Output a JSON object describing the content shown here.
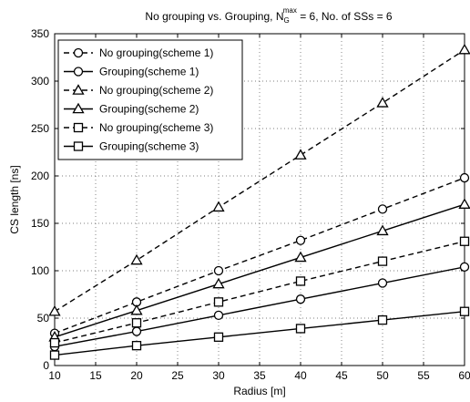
{
  "chart_data": {
    "type": "line",
    "title_prefix": "No grouping vs. Grouping, N",
    "title_sub": "G",
    "title_sup": "max",
    "title_suffix": " = 6, No. of SSs = 6",
    "xlabel": "Radius [m]",
    "ylabel": "CS length [ns]",
    "xlim": [
      10,
      60
    ],
    "ylim": [
      0,
      350
    ],
    "xticks": [
      "10",
      "15",
      "20",
      "25",
      "30",
      "35",
      "40",
      "45",
      "50",
      "55",
      "60"
    ],
    "yticks": [
      "0",
      "50",
      "100",
      "150",
      "200",
      "250",
      "300",
      "350"
    ],
    "grid": true,
    "legend_position": "top-left",
    "x": [
      10,
      20,
      30,
      40,
      50,
      60
    ],
    "series": [
      {
        "name": "No grouping(scheme 1)",
        "marker": "circle",
        "dash": "dashed",
        "values": [
          34,
          67,
          100,
          132,
          165,
          198
        ]
      },
      {
        "name": "Grouping(scheme 1)",
        "marker": "circle",
        "dash": "solid",
        "values": [
          20,
          36,
          53,
          70,
          87,
          104
        ]
      },
      {
        "name": "No grouping(scheme 2)",
        "marker": "triangle",
        "dash": "dashed",
        "values": [
          57,
          111,
          167,
          222,
          277,
          333
        ]
      },
      {
        "name": "Grouping(scheme 2)",
        "marker": "triangle",
        "dash": "solid",
        "values": [
          30,
          58,
          86,
          114,
          142,
          170
        ]
      },
      {
        "name": "No grouping(scheme 3)",
        "marker": "square",
        "dash": "dashed",
        "values": [
          24,
          45,
          67,
          89,
          110,
          131
        ]
      },
      {
        "name": "Grouping(scheme 3)",
        "marker": "square",
        "dash": "solid",
        "values": [
          11,
          21,
          30,
          39,
          48,
          57
        ]
      }
    ]
  }
}
